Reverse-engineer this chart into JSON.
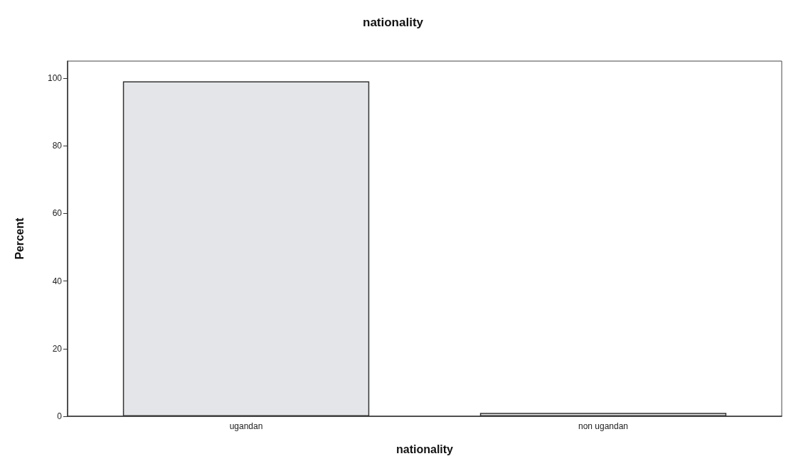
{
  "chart_data": {
    "type": "bar",
    "title": "nationality",
    "xlabel": "nationality",
    "ylabel": "Percent",
    "categories": [
      "ugandan",
      "non ugandan"
    ],
    "values": [
      99,
      1
    ],
    "color": "#e3e5e8",
    "ylim": [
      0,
      105
    ],
    "yticks": [
      0,
      20,
      40,
      60,
      80,
      100
    ],
    "grid": false
  }
}
